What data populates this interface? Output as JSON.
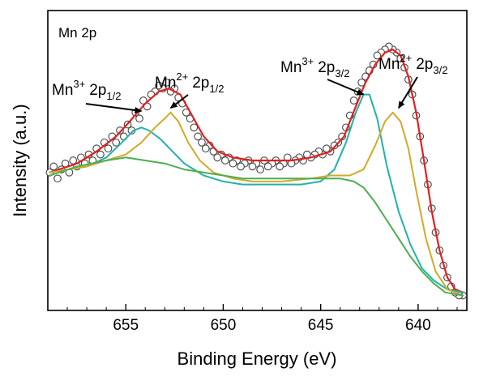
{
  "chart_data": {
    "type": "line",
    "title": "",
    "panel_label": "Mn 2p",
    "xlabel": "Binding Energy (eV)",
    "ylabel": "Intensity (a.u.)",
    "x_reversed": true,
    "xlim": [
      659,
      637.5
    ],
    "ylim": [
      0,
      1
    ],
    "x_ticks": [
      655,
      650,
      645,
      640
    ],
    "x_tick_labels": [
      "655",
      "650",
      "645",
      "640"
    ],
    "y_ticks_shown": false,
    "grid": false,
    "colors": {
      "data_points": "#444444",
      "envelope": "#e02020",
      "mn3": "#20b2aa",
      "mn2": "#d4a82a",
      "background": "#4caf50"
    },
    "annotations": [
      {
        "id": "mn3-2p12",
        "base": "Mn",
        "sup": "3+",
        "sub_base": "2p",
        "sub": "1/2",
        "arrow_x": 654.2,
        "arrow_y": 0.665
      },
      {
        "id": "mn2-2p12",
        "base": "Mn",
        "sup": "2+",
        "sub_base": "2p",
        "sub": "1/2",
        "arrow_x": 652.7,
        "arrow_y": 0.675
      },
      {
        "id": "mn3-2p32",
        "base": "Mn",
        "sup": "3+",
        "sub_base": "2p",
        "sub": "3/2",
        "arrow_x": 642.8,
        "arrow_y": 0.72
      },
      {
        "id": "mn2-2p32",
        "base": "Mn",
        "sup": "2+",
        "sub_base": "2p",
        "sub": "3/2",
        "arrow_x": 641.0,
        "arrow_y": 0.675
      }
    ],
    "series": [
      {
        "kind": "scatter",
        "role": "data_points",
        "points": [
          [
            658.9,
            0.46
          ],
          [
            658.7,
            0.48
          ],
          [
            658.5,
            0.44
          ],
          [
            658.3,
            0.47
          ],
          [
            658.1,
            0.49
          ],
          [
            657.9,
            0.46
          ],
          [
            657.7,
            0.5
          ],
          [
            657.5,
            0.48
          ],
          [
            657.3,
            0.51
          ],
          [
            657.1,
            0.49
          ],
          [
            656.9,
            0.52
          ],
          [
            656.7,
            0.5
          ],
          [
            656.5,
            0.54
          ],
          [
            656.3,
            0.52
          ],
          [
            656.1,
            0.56
          ],
          [
            655.9,
            0.54
          ],
          [
            655.7,
            0.58
          ],
          [
            655.5,
            0.56
          ],
          [
            655.3,
            0.6
          ],
          [
            655.1,
            0.58
          ],
          [
            654.9,
            0.62
          ],
          [
            654.7,
            0.6
          ],
          [
            654.5,
            0.66
          ],
          [
            654.3,
            0.64
          ],
          [
            654.1,
            0.7
          ],
          [
            653.9,
            0.68
          ],
          [
            653.7,
            0.72
          ],
          [
            653.5,
            0.73
          ],
          [
            653.3,
            0.75
          ],
          [
            653.1,
            0.74
          ],
          [
            652.9,
            0.76
          ],
          [
            652.7,
            0.73
          ],
          [
            652.5,
            0.74
          ],
          [
            652.3,
            0.71
          ],
          [
            652.1,
            0.69
          ],
          [
            651.9,
            0.66
          ],
          [
            651.7,
            0.64
          ],
          [
            651.5,
            0.61
          ],
          [
            651.3,
            0.58
          ],
          [
            651.1,
            0.56
          ],
          [
            650.9,
            0.54
          ],
          [
            650.7,
            0.55
          ],
          [
            650.5,
            0.53
          ],
          [
            650.3,
            0.51
          ],
          [
            650.1,
            0.52
          ],
          [
            649.9,
            0.5
          ],
          [
            649.7,
            0.51
          ],
          [
            649.5,
            0.49
          ],
          [
            649.3,
            0.5
          ],
          [
            649.1,
            0.48
          ],
          [
            648.9,
            0.49
          ],
          [
            648.7,
            0.5
          ],
          [
            648.5,
            0.48
          ],
          [
            648.3,
            0.49
          ],
          [
            648.1,
            0.47
          ],
          [
            647.9,
            0.5
          ],
          [
            647.7,
            0.48
          ],
          [
            647.5,
            0.49
          ],
          [
            647.3,
            0.5
          ],
          [
            647.1,
            0.48
          ],
          [
            646.9,
            0.49
          ],
          [
            646.7,
            0.51
          ],
          [
            646.5,
            0.49
          ],
          [
            646.3,
            0.5
          ],
          [
            646.1,
            0.51
          ],
          [
            645.9,
            0.5
          ],
          [
            645.7,
            0.52
          ],
          [
            645.5,
            0.51
          ],
          [
            645.3,
            0.52
          ],
          [
            645.1,
            0.53
          ],
          [
            644.9,
            0.52
          ],
          [
            644.7,
            0.54
          ],
          [
            644.5,
            0.53
          ],
          [
            644.3,
            0.55
          ],
          [
            644.1,
            0.56
          ],
          [
            643.9,
            0.58
          ],
          [
            643.7,
            0.61
          ],
          [
            643.5,
            0.65
          ],
          [
            643.3,
            0.7
          ],
          [
            643.1,
            0.73
          ],
          [
            642.9,
            0.76
          ],
          [
            642.7,
            0.78
          ],
          [
            642.5,
            0.8
          ],
          [
            642.3,
            0.82
          ],
          [
            642.1,
            0.85
          ],
          [
            641.9,
            0.86
          ],
          [
            641.7,
            0.87
          ],
          [
            641.5,
            0.88
          ],
          [
            641.3,
            0.87
          ],
          [
            641.1,
            0.86
          ],
          [
            640.9,
            0.84
          ],
          [
            640.7,
            0.81
          ],
          [
            640.5,
            0.77
          ],
          [
            640.3,
            0.72
          ],
          [
            640.1,
            0.65
          ],
          [
            639.9,
            0.58
          ],
          [
            639.7,
            0.5
          ],
          [
            639.5,
            0.42
          ],
          [
            639.3,
            0.34
          ],
          [
            639.1,
            0.26
          ],
          [
            638.9,
            0.2
          ],
          [
            638.7,
            0.15
          ],
          [
            638.5,
            0.11
          ],
          [
            638.3,
            0.08
          ],
          [
            638.1,
            0.06
          ],
          [
            637.9,
            0.05
          ],
          [
            637.7,
            0.05
          ]
        ]
      },
      {
        "kind": "line",
        "role": "envelope",
        "points": [
          [
            658.9,
            0.46
          ],
          [
            657.5,
            0.49
          ],
          [
            656.5,
            0.53
          ],
          [
            655.5,
            0.58
          ],
          [
            654.8,
            0.63
          ],
          [
            654.0,
            0.69
          ],
          [
            653.3,
            0.73
          ],
          [
            652.8,
            0.74
          ],
          [
            652.2,
            0.72
          ],
          [
            651.6,
            0.65
          ],
          [
            651.0,
            0.58
          ],
          [
            650.3,
            0.53
          ],
          [
            649.5,
            0.51
          ],
          [
            648.5,
            0.5
          ],
          [
            647.5,
            0.5
          ],
          [
            646.5,
            0.5
          ],
          [
            645.5,
            0.51
          ],
          [
            644.5,
            0.53
          ],
          [
            643.8,
            0.58
          ],
          [
            643.2,
            0.68
          ],
          [
            642.7,
            0.76
          ],
          [
            642.2,
            0.82
          ],
          [
            641.7,
            0.86
          ],
          [
            641.3,
            0.87
          ],
          [
            640.9,
            0.85
          ],
          [
            640.5,
            0.78
          ],
          [
            640.1,
            0.66
          ],
          [
            639.7,
            0.5
          ],
          [
            639.3,
            0.33
          ],
          [
            638.9,
            0.2
          ],
          [
            638.5,
            0.11
          ],
          [
            638.1,
            0.07
          ],
          [
            637.7,
            0.06
          ]
        ]
      },
      {
        "kind": "line",
        "role": "mn3",
        "points": [
          [
            658.9,
            0.46
          ],
          [
            657.0,
            0.48
          ],
          [
            656.0,
            0.51
          ],
          [
            655.2,
            0.56
          ],
          [
            654.6,
            0.6
          ],
          [
            654.2,
            0.61
          ],
          [
            653.8,
            0.6
          ],
          [
            653.2,
            0.57
          ],
          [
            652.6,
            0.53
          ],
          [
            652.0,
            0.49
          ],
          [
            651.0,
            0.45
          ],
          [
            650.0,
            0.43
          ],
          [
            649.0,
            0.42
          ],
          [
            648.0,
            0.42
          ],
          [
            647.0,
            0.42
          ],
          [
            646.0,
            0.42
          ],
          [
            645.0,
            0.43
          ],
          [
            644.3,
            0.47
          ],
          [
            643.7,
            0.56
          ],
          [
            643.2,
            0.66
          ],
          [
            642.8,
            0.72
          ],
          [
            642.5,
            0.72
          ],
          [
            642.1,
            0.64
          ],
          [
            641.6,
            0.48
          ],
          [
            641.0,
            0.33
          ],
          [
            640.4,
            0.22
          ],
          [
            639.8,
            0.14
          ],
          [
            639.2,
            0.1
          ],
          [
            638.5,
            0.07
          ],
          [
            637.7,
            0.06
          ]
        ]
      },
      {
        "kind": "line",
        "role": "mn2",
        "points": [
          [
            658.9,
            0.46
          ],
          [
            657.0,
            0.48
          ],
          [
            656.0,
            0.5
          ],
          [
            655.0,
            0.52
          ],
          [
            654.2,
            0.56
          ],
          [
            653.5,
            0.61
          ],
          [
            653.0,
            0.64
          ],
          [
            652.7,
            0.66
          ],
          [
            652.3,
            0.63
          ],
          [
            651.8,
            0.56
          ],
          [
            651.2,
            0.5
          ],
          [
            650.5,
            0.46
          ],
          [
            649.5,
            0.44
          ],
          [
            648.5,
            0.43
          ],
          [
            647.0,
            0.43
          ],
          [
            645.5,
            0.44
          ],
          [
            644.5,
            0.45
          ],
          [
            643.5,
            0.45
          ],
          [
            642.8,
            0.47
          ],
          [
            642.2,
            0.55
          ],
          [
            641.7,
            0.63
          ],
          [
            641.3,
            0.66
          ],
          [
            640.9,
            0.63
          ],
          [
            640.5,
            0.54
          ],
          [
            640.1,
            0.4
          ],
          [
            639.6,
            0.24
          ],
          [
            639.1,
            0.13
          ],
          [
            638.5,
            0.07
          ],
          [
            637.7,
            0.05
          ]
        ]
      },
      {
        "kind": "line",
        "role": "background",
        "points": [
          [
            658.9,
            0.45
          ],
          [
            657.5,
            0.48
          ],
          [
            656.0,
            0.5
          ],
          [
            655.0,
            0.51
          ],
          [
            654.0,
            0.5
          ],
          [
            653.0,
            0.49
          ],
          [
            652.0,
            0.47
          ],
          [
            651.0,
            0.46
          ],
          [
            650.0,
            0.45
          ],
          [
            649.0,
            0.44
          ],
          [
            648.0,
            0.44
          ],
          [
            647.0,
            0.44
          ],
          [
            646.0,
            0.44
          ],
          [
            645.0,
            0.44
          ],
          [
            644.0,
            0.44
          ],
          [
            643.3,
            0.43
          ],
          [
            642.8,
            0.41
          ],
          [
            642.2,
            0.36
          ],
          [
            641.6,
            0.3
          ],
          [
            641.0,
            0.24
          ],
          [
            640.4,
            0.18
          ],
          [
            639.8,
            0.13
          ],
          [
            639.2,
            0.09
          ],
          [
            638.6,
            0.06
          ],
          [
            637.7,
            0.05
          ]
        ]
      }
    ]
  }
}
